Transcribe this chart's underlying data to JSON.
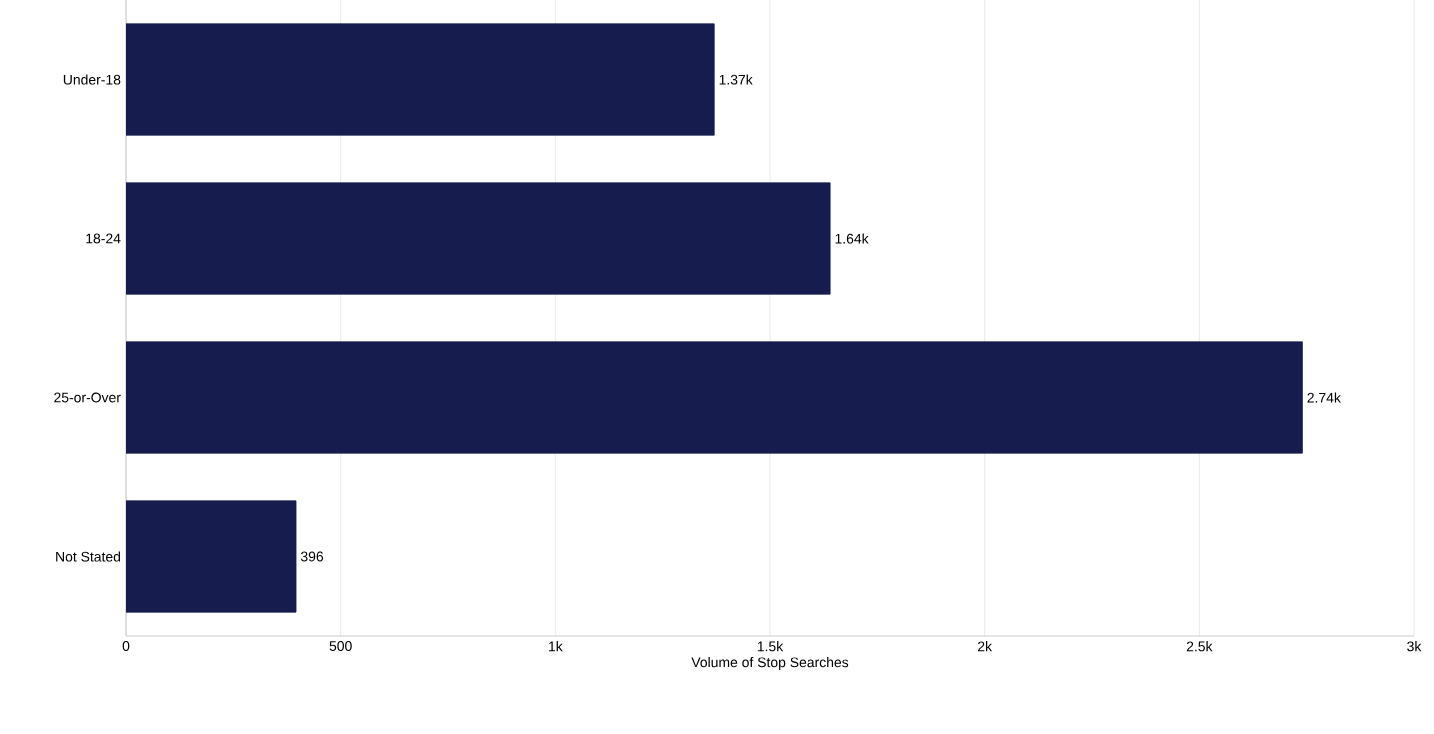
{
  "chart_data": {
    "type": "bar",
    "orientation": "horizontal",
    "categories": [
      "Under-18",
      "18-24",
      "25-or-Over",
      "Not Stated"
    ],
    "values": [
      1370,
      1640,
      2740,
      396
    ],
    "value_labels": [
      "1.37k",
      "1.64k",
      "2.74k",
      "396"
    ],
    "color": "#161c4d",
    "xlim": [
      0,
      3000
    ],
    "xticks": [
      0,
      500,
      {
        "value": 1000,
        "label": "1k"
      },
      {
        "value": 1500,
        "label": "1.5k"
      },
      {
        "value": 2000,
        "label": "2k"
      },
      {
        "value": 2500,
        "label": "2.5k"
      },
      {
        "value": 3000,
        "label": "3k"
      }
    ],
    "xlabel": "Volume of Stop Searches",
    "grid": "x"
  }
}
